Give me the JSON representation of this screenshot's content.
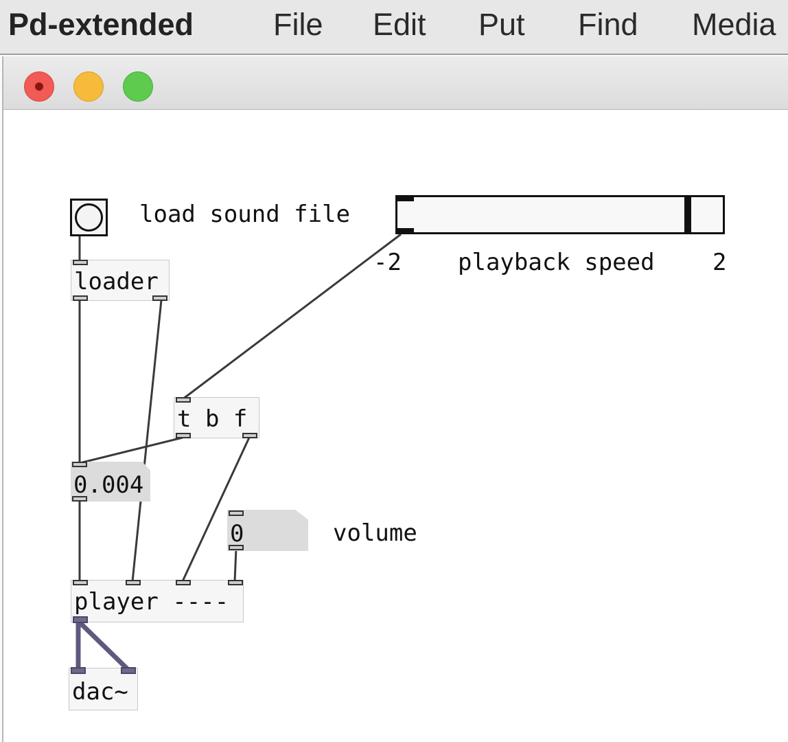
{
  "menubar": {
    "app_name": "Pd-extended",
    "items": [
      "File",
      "Edit",
      "Put",
      "Find",
      "Media"
    ]
  },
  "window": {
    "traffic_lights": {
      "close": "#f25a56",
      "minimize": "#f6bb3a",
      "maximize": "#5ecb4f"
    }
  },
  "patch": {
    "bang_label": "load sound file",
    "slider": {
      "label": "playback speed",
      "min_label": "-2",
      "max_label": "2",
      "min": -2,
      "max": 2,
      "value": 1.6
    },
    "objects": {
      "loader": "loader",
      "trigger": "t b f",
      "player": "player ----",
      "dac": "dac~"
    },
    "numbox_speed": "0.004",
    "numbox_volume": "0",
    "volume_label": "volume"
  },
  "colors": {
    "wire": "#3a3a3a",
    "signal_wire": "#5e5a7e",
    "numbox_bg": "#dcdcdc",
    "object_bg": "#f6f6f6"
  },
  "icons": {
    "close": "close-button-icon",
    "minimize": "minimize-button-icon",
    "maximize": "maximize-button-icon",
    "bang": "bang-circle-icon"
  }
}
